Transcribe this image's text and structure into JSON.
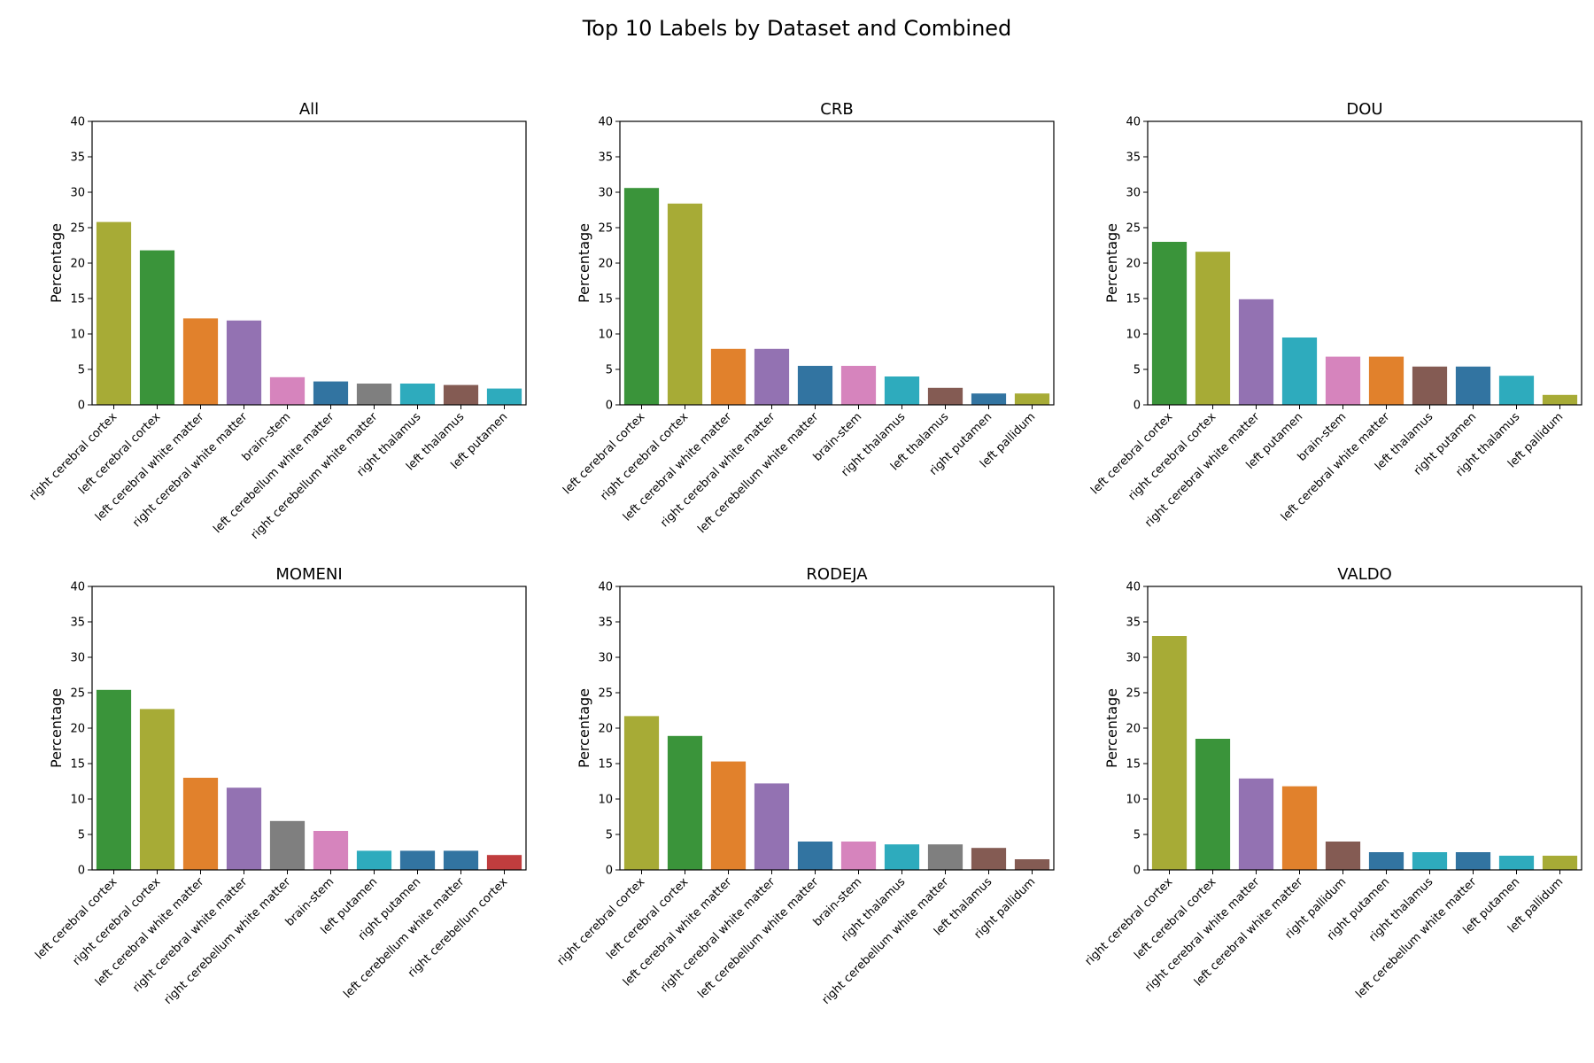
{
  "figure": {
    "title": "Top 10 Labels by Dataset and Combined"
  },
  "colors": {
    "right cerebral cortex": "#a7ab36",
    "left cerebral cortex": "#3a943a",
    "left cerebral white matter": "#e1812c",
    "right cerebral white matter": "#9372b2",
    "brain-stem": "#d684bd",
    "left cerebellum white matter": "#3274a1",
    "right cerebellum white matter": "#7f7f7f",
    "right thalamus": "#2eabbd",
    "left thalamus": "#845b53",
    "left putamen": "#2eabbd",
    "right putamen": "#3274a1",
    "left pallidum": "#a7ab36",
    "right pallidum": "#845b53",
    "right cerebellum cortex": "#c03d3e",
    "axis": "#000000"
  },
  "chart_data": [
    {
      "type": "bar",
      "title": "All",
      "ylabel": "Percentage",
      "xlabel": "",
      "ylim": [
        0,
        40
      ],
      "yticks": [
        0,
        5,
        10,
        15,
        20,
        25,
        30,
        35,
        40
      ],
      "categories": [
        "right cerebral cortex",
        "left cerebral cortex",
        "left cerebral white matter",
        "right cerebral white matter",
        "brain-stem",
        "left cerebellum white matter",
        "right cerebellum white matter",
        "right thalamus",
        "left thalamus",
        "left putamen"
      ],
      "values": [
        25.8,
        21.8,
        12.2,
        11.9,
        3.9,
        3.3,
        3.0,
        3.0,
        2.8,
        2.3
      ],
      "bar_colors": [
        "#a7ab36",
        "#3a943a",
        "#e1812c",
        "#9372b2",
        "#d684bd",
        "#3274a1",
        "#7f7f7f",
        "#2eabbd",
        "#845b53",
        "#2eabbd"
      ]
    },
    {
      "type": "bar",
      "title": "CRB",
      "ylabel": "Percentage",
      "xlabel": "",
      "ylim": [
        0,
        40
      ],
      "yticks": [
        0,
        5,
        10,
        15,
        20,
        25,
        30,
        35,
        40
      ],
      "categories": [
        "left cerebral cortex",
        "right cerebral cortex",
        "left cerebral white matter",
        "right cerebral white matter",
        "left cerebellum white matter",
        "brain-stem",
        "right thalamus",
        "left thalamus",
        "right putamen",
        "left pallidum"
      ],
      "values": [
        30.6,
        28.4,
        7.9,
        7.9,
        5.5,
        5.5,
        4.0,
        2.4,
        1.6,
        1.6
      ],
      "bar_colors": [
        "#3a943a",
        "#a7ab36",
        "#e1812c",
        "#9372b2",
        "#3274a1",
        "#d684bd",
        "#2eabbd",
        "#845b53",
        "#3274a1",
        "#a7ab36"
      ]
    },
    {
      "type": "bar",
      "title": "DOU",
      "ylabel": "Percentage",
      "xlabel": "",
      "ylim": [
        0,
        40
      ],
      "yticks": [
        0,
        5,
        10,
        15,
        20,
        25,
        30,
        35,
        40
      ],
      "categories": [
        "left cerebral cortex",
        "right cerebral cortex",
        "right cerebral white matter",
        "left putamen",
        "brain-stem",
        "left cerebral white matter",
        "left thalamus",
        "right putamen",
        "right thalamus",
        "left pallidum"
      ],
      "values": [
        23.0,
        21.6,
        14.9,
        9.5,
        6.8,
        6.8,
        5.4,
        5.4,
        4.1,
        1.4
      ],
      "bar_colors": [
        "#3a943a",
        "#a7ab36",
        "#9372b2",
        "#2eabbd",
        "#d684bd",
        "#e1812c",
        "#845b53",
        "#3274a1",
        "#2eabbd",
        "#a7ab36"
      ]
    },
    {
      "type": "bar",
      "title": "MOMENI",
      "ylabel": "Percentage",
      "xlabel": "",
      "ylim": [
        0,
        40
      ],
      "yticks": [
        0,
        5,
        10,
        15,
        20,
        25,
        30,
        35,
        40
      ],
      "categories": [
        "left cerebral cortex",
        "right cerebral cortex",
        "left cerebral white matter",
        "right cerebral white matter",
        "right cerebellum white matter",
        "brain-stem",
        "left putamen",
        "right putamen",
        "left cerebellum white matter",
        "right cerebellum cortex"
      ],
      "values": [
        25.4,
        22.7,
        13.0,
        11.6,
        6.9,
        5.5,
        2.7,
        2.7,
        2.7,
        2.1
      ],
      "bar_colors": [
        "#3a943a",
        "#a7ab36",
        "#e1812c",
        "#9372b2",
        "#7f7f7f",
        "#d684bd",
        "#2eabbd",
        "#3274a1",
        "#3274a1",
        "#c03d3e"
      ]
    },
    {
      "type": "bar",
      "title": "RODEJA",
      "ylabel": "Percentage",
      "xlabel": "",
      "ylim": [
        0,
        40
      ],
      "yticks": [
        0,
        5,
        10,
        15,
        20,
        25,
        30,
        35,
        40
      ],
      "categories": [
        "right cerebral cortex",
        "left cerebral cortex",
        "left cerebral white matter",
        "right cerebral white matter",
        "left cerebellum white matter",
        "brain-stem",
        "right thalamus",
        "right cerebellum white matter",
        "left thalamus",
        "right pallidum"
      ],
      "values": [
        21.7,
        18.9,
        15.3,
        12.2,
        4.0,
        4.0,
        3.6,
        3.6,
        3.1,
        1.5
      ],
      "bar_colors": [
        "#a7ab36",
        "#3a943a",
        "#e1812c",
        "#9372b2",
        "#3274a1",
        "#d684bd",
        "#2eabbd",
        "#7f7f7f",
        "#845b53",
        "#845b53"
      ]
    },
    {
      "type": "bar",
      "title": "VALDO",
      "ylabel": "Percentage",
      "xlabel": "",
      "ylim": [
        0,
        40
      ],
      "yticks": [
        0,
        5,
        10,
        15,
        20,
        25,
        30,
        35,
        40
      ],
      "categories": [
        "right cerebral cortex",
        "left cerebral cortex",
        "right cerebral white matter",
        "left cerebral white matter",
        "right pallidum",
        "right putamen",
        "right thalamus",
        "left cerebellum white matter",
        "left putamen",
        "left pallidum"
      ],
      "values": [
        33.0,
        18.5,
        12.9,
        11.8,
        4.0,
        2.5,
        2.5,
        2.5,
        2.0,
        2.0
      ],
      "bar_colors": [
        "#a7ab36",
        "#3a943a",
        "#9372b2",
        "#e1812c",
        "#845b53",
        "#3274a1",
        "#2eabbd",
        "#3274a1",
        "#2eabbd",
        "#a7ab36"
      ]
    }
  ]
}
